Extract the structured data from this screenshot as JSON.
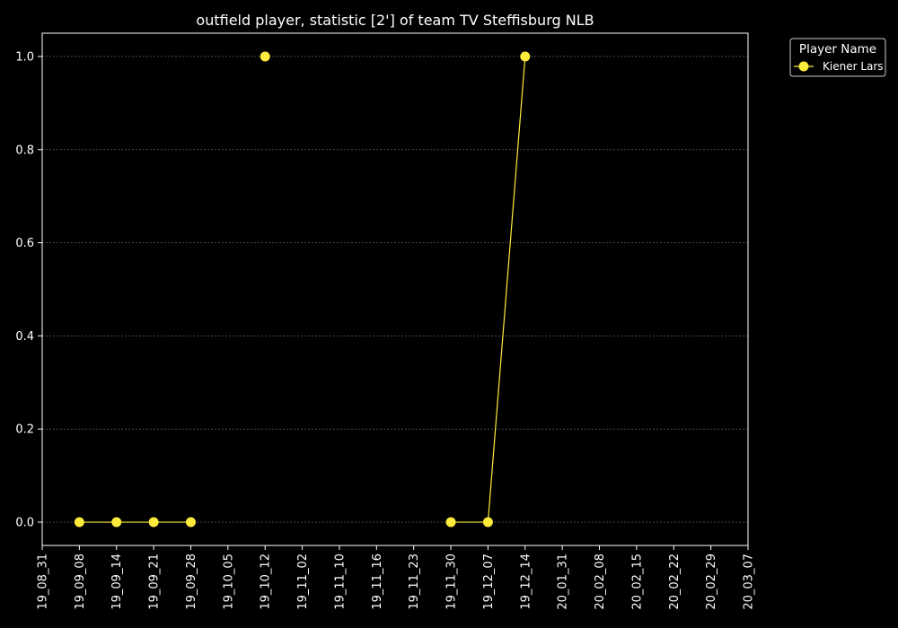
{
  "chart_data": {
    "type": "line",
    "title": "outfield player, statistic [2'] of team TV Steffisburg NLB",
    "xlabel": "",
    "ylabel": "",
    "x_ticks": [
      "19_08_31",
      "19_09_08",
      "19_09_14",
      "19_09_21",
      "19_09_28",
      "19_10_05",
      "19_10_12",
      "19_11_02",
      "19_11_10",
      "19_11_16",
      "19_11_23",
      "19_11_30",
      "19_12_07",
      "19_12_14",
      "20_01_31",
      "20_02_08",
      "20_02_15",
      "20_02_22",
      "20_02_29",
      "20_03_07"
    ],
    "y_ticks": [
      "0.0",
      "0.2",
      "0.4",
      "0.6",
      "0.8",
      "1.0"
    ],
    "ylim": [
      -0.05,
      1.05
    ],
    "grid": "horizontal dashed",
    "legend": {
      "title": "Player Name",
      "placement": "outside top-right"
    },
    "series": [
      {
        "name": "Kiener Lars",
        "color": "#ffeb3b",
        "points": [
          {
            "x": "19_09_08",
            "y": 0
          },
          {
            "x": "19_09_14",
            "y": 0
          },
          {
            "x": "19_09_21",
            "y": 0
          },
          {
            "x": "19_09_28",
            "y": 0
          },
          {
            "x": "19_10_05",
            "y": null
          },
          {
            "x": "19_10_12",
            "y": 1
          },
          {
            "x": "19_11_02",
            "y": null
          },
          {
            "x": "19_11_10",
            "y": null
          },
          {
            "x": "19_11_16",
            "y": null
          },
          {
            "x": "19_11_23",
            "y": null
          },
          {
            "x": "19_11_30",
            "y": 0
          },
          {
            "x": "19_12_07",
            "y": 0
          },
          {
            "x": "19_12_14",
            "y": 1
          }
        ]
      }
    ]
  }
}
